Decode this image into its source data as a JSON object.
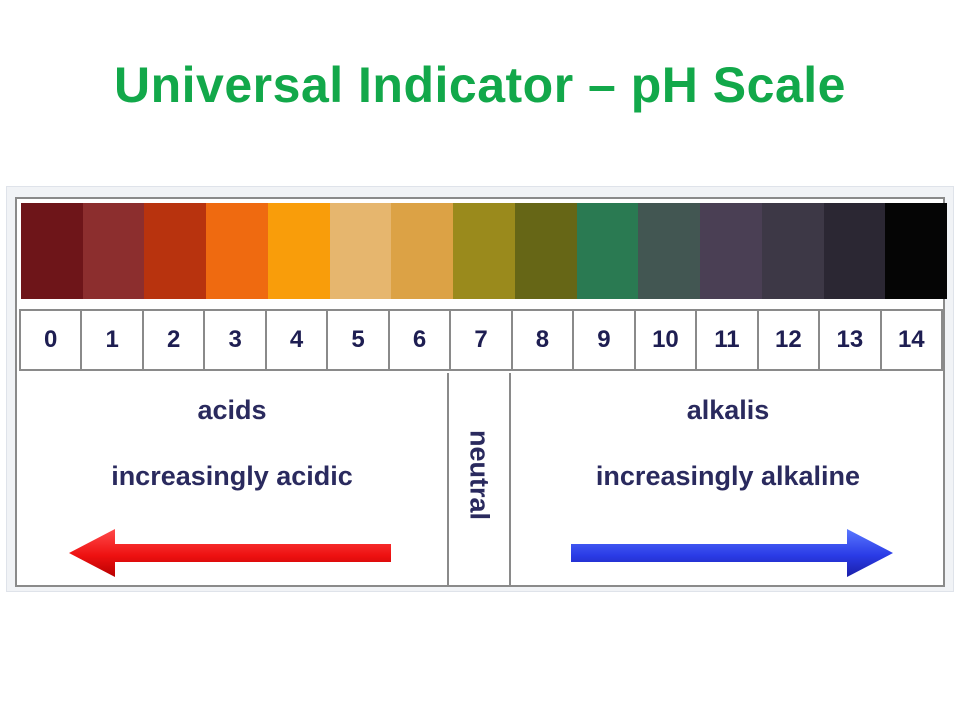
{
  "title": "Universal Indicator – pH Scale",
  "title_color": "#12a84a",
  "scale": {
    "values": [
      "0",
      "1",
      "2",
      "3",
      "4",
      "5",
      "6",
      "7",
      "8",
      "9",
      "10",
      "11",
      "12",
      "13",
      "14"
    ],
    "colors": [
      "#6e1519",
      "#8c2e2e",
      "#b8330e",
      "#ef6a10",
      "#f99d0a",
      "#e6b66e",
      "#dca245",
      "#9a8a1c",
      "#666616",
      "#2a7a52",
      "#425652",
      "#4a3f54",
      "#3d3846",
      "#2b2733",
      "#050505"
    ]
  },
  "regions": {
    "acids": {
      "label": "acids",
      "sub": "increasingly acidic",
      "arrow_color": "#ee1111",
      "arrow_icon": "arrow-left-icon"
    },
    "neutral": {
      "label": "neutral"
    },
    "alkalis": {
      "label": "alkalis",
      "sub": "increasingly alkaline",
      "arrow_color": "#2a3be6",
      "arrow_icon": "arrow-right-icon"
    }
  }
}
